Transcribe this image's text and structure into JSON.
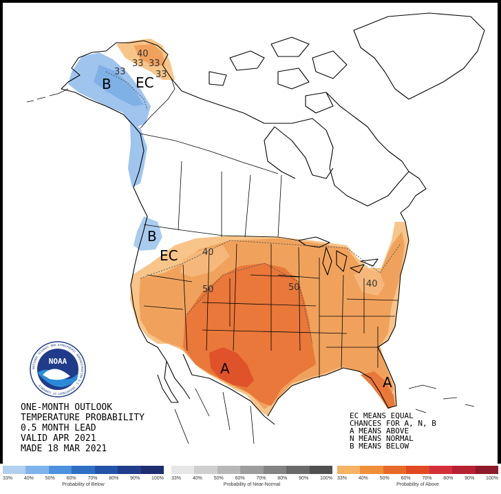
{
  "map": {
    "title_lines": [
      "ONE-MONTH OUTLOOK",
      "TEMPERATURE PROBABILITY",
      "0.5 MONTH LEAD",
      "VALID APR 2021",
      "MADE 18 MAR 2021"
    ],
    "key_lines": [
      "EC MEANS EQUAL",
      "CHANCES FOR A, N, B",
      "A MEANS ABOVE",
      "N MEANS NORMAL",
      "B MEANS BELOW"
    ],
    "region_labels": {
      "b_alaska": "B",
      "ec_alaska": "EC",
      "b_northwest": "B",
      "ec_northwest": "EC",
      "a_southwest": "A",
      "a_florida": "A"
    },
    "contour_labels": {
      "alaska_33_a": "33",
      "alaska_33_b": "33",
      "alaska_33_c": "33",
      "alaska_40": "40",
      "west_40": "40",
      "central_50_a": "50",
      "central_50_b": "50",
      "east_40": "40"
    },
    "logo_text": "NOAA",
    "seal_text": "NATIONAL OCEANIC AND ATMOSPHERIC ADMINISTRATION U.S. DEPARTMENT OF COMMERCE"
  },
  "legend": {
    "below": {
      "caption": "Probability of Below",
      "ticks": [
        "33%",
        "40%",
        "50%",
        "60%",
        "70%",
        "80%",
        "90%",
        "100%"
      ],
      "colors": [
        "#b2d0ee",
        "#7fb4ea",
        "#4d92dd",
        "#2f6fc4",
        "#2454a6",
        "#1f3d8a",
        "#1d2d70",
        "#1a1a5a"
      ]
    },
    "normal": {
      "caption": "Probability of Near-Normal",
      "ticks": [
        "33%",
        "40%",
        "50%",
        "60%",
        "70%",
        "80%",
        "90%",
        "100%"
      ],
      "colors": [
        "#e6e6e6",
        "#cfcfcf",
        "#b8b8b8",
        "#9d9d9d",
        "#838383",
        "#6a6a6a",
        "#505050",
        "#353535"
      ]
    },
    "above": {
      "caption": "Probability of Above",
      "ticks": [
        "33%",
        "40%",
        "50%",
        "60%",
        "70%",
        "80%",
        "90%",
        "100%"
      ],
      "colors": [
        "#f5b363",
        "#f08f3a",
        "#e86a28",
        "#e04a22",
        "#d4303a",
        "#b72233",
        "#8f1a2a",
        "#6a1020"
      ]
    }
  },
  "colors": {
    "above_33": "#f7c58a",
    "above_40": "#f0a25c",
    "above_50": "#e9783a",
    "above_60": "#e0522a",
    "below_33": "#a9cbef",
    "below_40": "#73a8e4"
  }
}
